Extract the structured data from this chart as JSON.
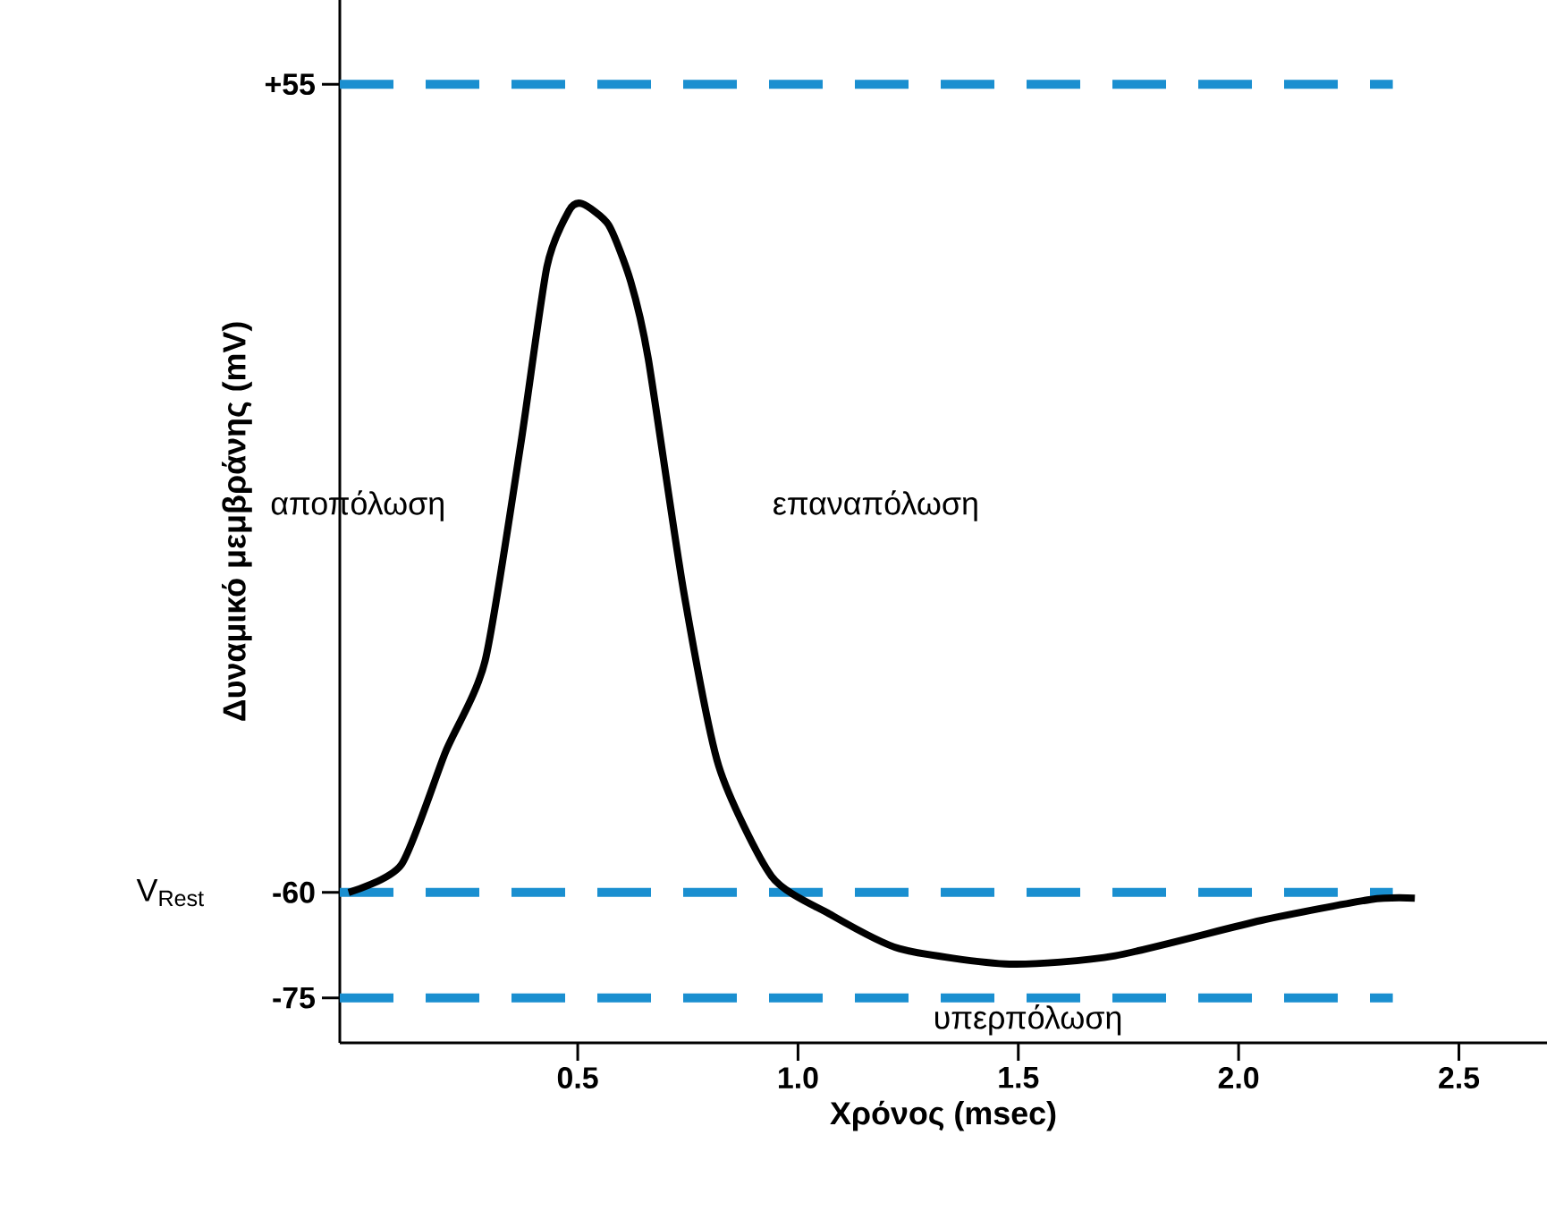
{
  "chart_data": {
    "type": "line",
    "xlabel": "Χρόνος (msec)",
    "ylabel": "Δυναμικό μεμβράνης (mV)",
    "xlim": [
      -0.04,
      2.7
    ],
    "ylim": [
      -81.4,
      67
    ],
    "xticks": [
      0.5,
      {
        "value": 1,
        "label": "1.0"
      },
      1.5,
      {
        "value": 2,
        "label": "2.0"
      },
      2.5
    ],
    "yticks": [
      {
        "value": 55,
        "label": "+55"
      },
      -60,
      -75
    ],
    "series": [
      {
        "color": "#000000",
        "x": [
          -0.02,
          0.1,
          0.2,
          0.29,
          0.37,
          0.43,
          0.48,
          0.51,
          0.57,
          0.62,
          0.66,
          0.74,
          0.82,
          0.94,
          1.07,
          1.23,
          1.48,
          1.72,
          2.05,
          2.3,
          2.4
        ],
        "values": [
          -60,
          -56,
          -40,
          -27,
          3.5,
          29,
          37,
          38,
          35,
          27,
          16,
          -17,
          -42,
          -57.7,
          -63,
          -68,
          -70.2,
          -69,
          -64,
          -61,
          -60.8
        ]
      }
    ],
    "ref_lines": [
      {
        "axis": "y",
        "value": 55,
        "color": "#1a8fd0",
        "line_style": "dashed"
      },
      {
        "axis": "y",
        "value": -60,
        "color": "#1a8fd0",
        "line_style": "dashed"
      },
      {
        "axis": "y",
        "value": -75,
        "color": "#1a8fd0",
        "line_style": "dashed"
      }
    ],
    "annotations": [
      "αποπόλωση",
      "επαναπόλωση",
      "υπερπόλωση",
      "V$_{Rest}$"
    ]
  }
}
